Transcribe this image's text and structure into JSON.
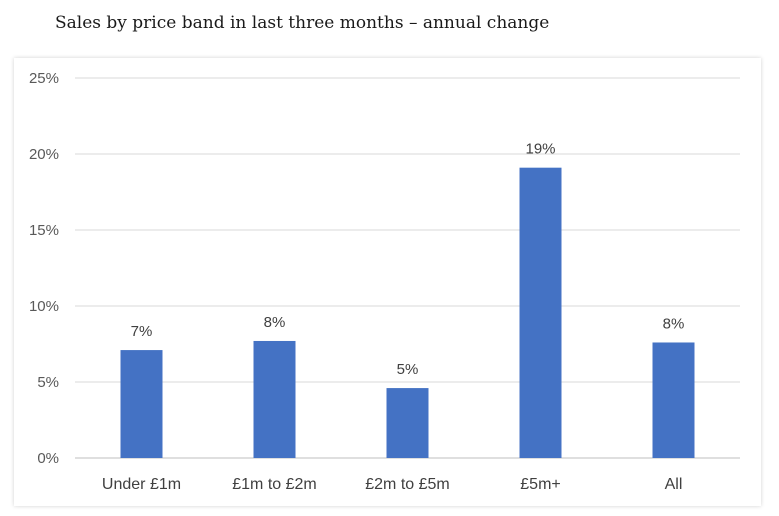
{
  "title": "Sales by price band in last three months – annual change",
  "colors": {
    "bar": "#4472c4",
    "grid": "#d9d9d9",
    "axis": "#bfbfbf"
  },
  "chart_data": {
    "type": "bar",
    "title": "",
    "xlabel": "",
    "ylabel": "",
    "categories": [
      "Under £1m",
      "£1m to £2m",
      "£2m to £5m",
      "£5m+",
      "All"
    ],
    "values": [
      7.1,
      7.7,
      4.6,
      19.1,
      7.6
    ],
    "data_labels": [
      "7%",
      "8%",
      "5%",
      "19%",
      "8%"
    ],
    "yticks": [
      {
        "value": 0,
        "label": "0%"
      },
      {
        "value": 5,
        "label": "5%"
      },
      {
        "value": 10,
        "label": "10%"
      },
      {
        "value": 15,
        "label": "15%"
      },
      {
        "value": 20,
        "label": "20%"
      },
      {
        "value": 25,
        "label": "25%"
      }
    ],
    "ylim": [
      0,
      25
    ],
    "grid": true,
    "legend": "none"
  }
}
